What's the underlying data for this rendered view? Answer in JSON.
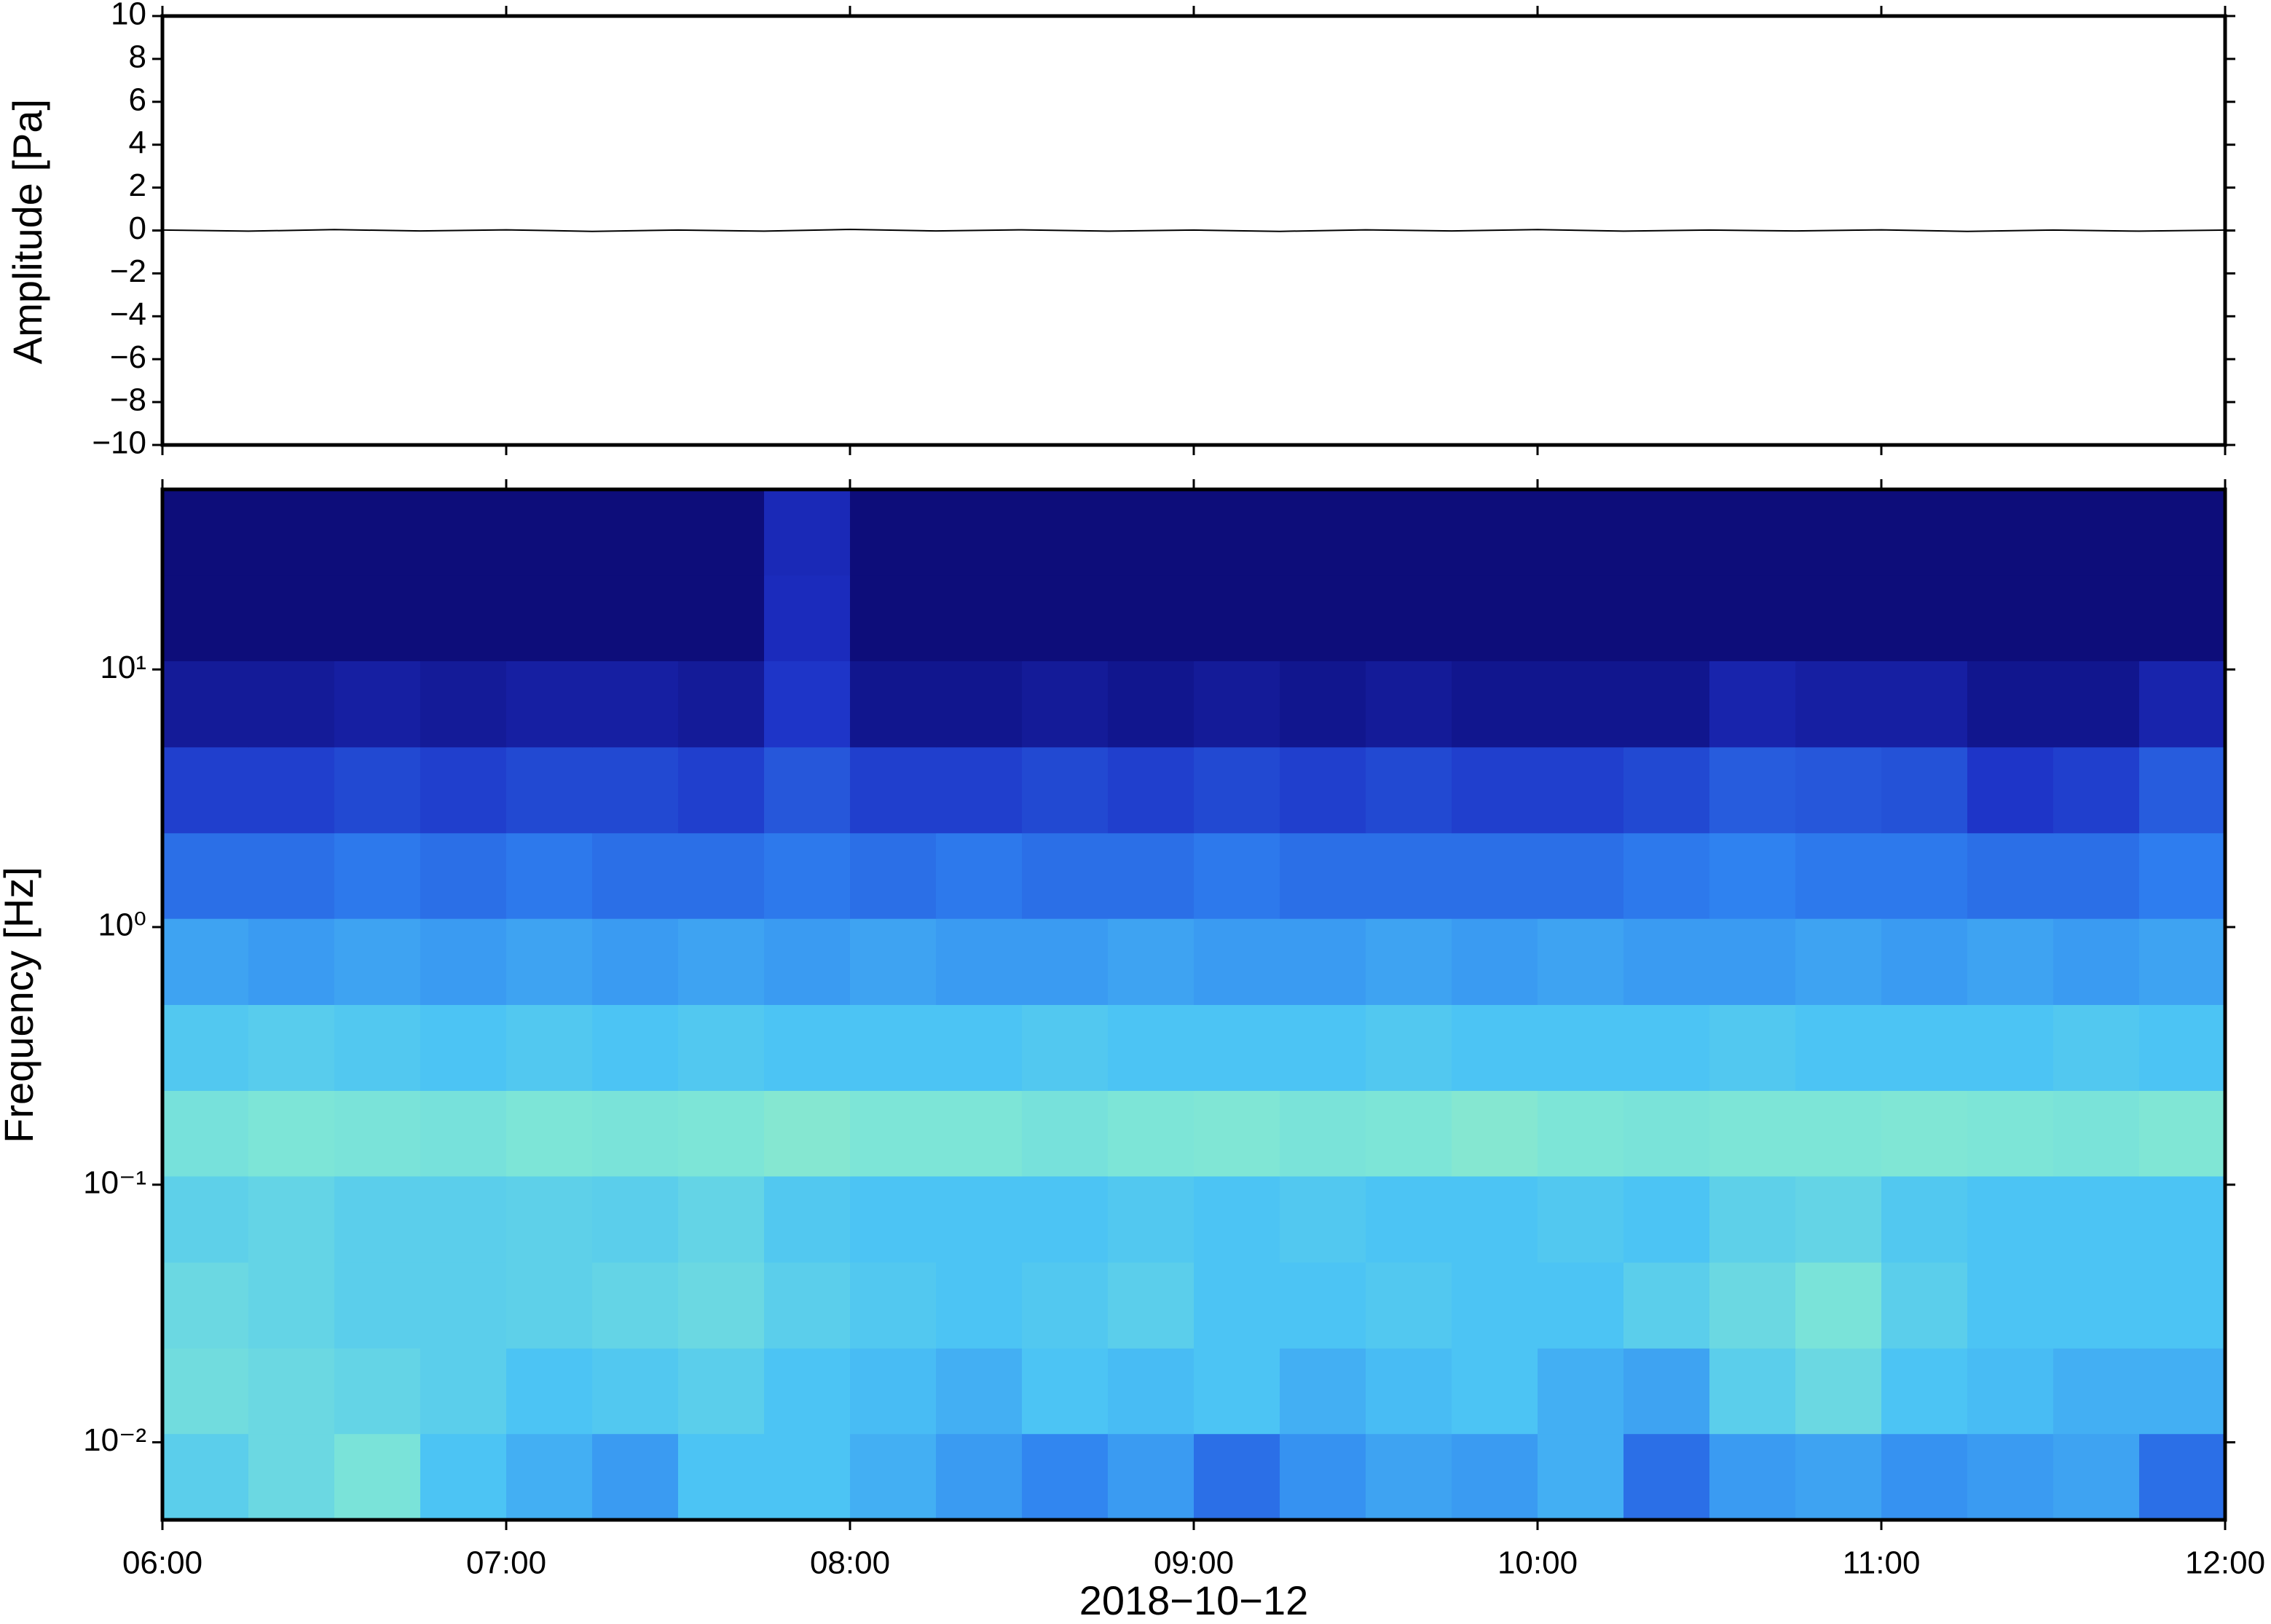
{
  "chart_data": [
    {
      "type": "line",
      "ylabel": "Amplitude [Pa]",
      "xlim": [
        "06:00",
        "12:00"
      ],
      "ylim": [
        -10,
        10
      ],
      "yticks": [
        {
          "value": -10,
          "label": "−10"
        },
        {
          "value": -8,
          "label": "−8"
        },
        {
          "value": -6,
          "label": "−6"
        },
        {
          "value": -4,
          "label": "−4"
        },
        {
          "value": -2,
          "label": "−2"
        },
        0,
        2,
        4,
        6,
        8,
        10
      ],
      "color": "#000000",
      "x": [
        "06:00",
        "06:15",
        "06:30",
        "06:45",
        "07:00",
        "07:15",
        "07:30",
        "07:45",
        "08:00",
        "08:15",
        "08:30",
        "08:45",
        "09:00",
        "09:15",
        "09:30",
        "09:45",
        "10:00",
        "10:15",
        "10:30",
        "10:45",
        "11:00",
        "11:15",
        "11:30",
        "11:45",
        "12:00"
      ],
      "values": [
        0.02,
        -0.03,
        0.04,
        -0.02,
        0.03,
        -0.04,
        0.02,
        -0.03,
        0.05,
        -0.02,
        0.03,
        -0.03,
        0.02,
        -0.04,
        0.03,
        -0.02,
        0.04,
        -0.03,
        0.02,
        -0.02,
        0.03,
        -0.04,
        0.02,
        -0.03,
        0.02
      ]
    },
    {
      "type": "heatmap",
      "ylabel": "Frequency [Hz]",
      "xlabel": "2018−10−12",
      "xlim": [
        "06:00",
        "12:00"
      ],
      "xticks": [
        "06:00",
        "07:00",
        "08:00",
        "09:00",
        "10:00",
        "11:00",
        "12:00"
      ],
      "ylim": [
        0.005,
        50
      ],
      "log_y": true,
      "yticks": [
        {
          "value": 0.01,
          "label": "10⁻²"
        },
        {
          "value": 0.1,
          "label": "10⁻¹"
        },
        {
          "value": 1,
          "label": "10⁰"
        },
        {
          "value": 10,
          "label": "10¹"
        }
      ],
      "colormap": [
        "#0b0870",
        "#1d2fc4",
        "#2e7ff0",
        "#4cc4f4",
        "#7fe6d6",
        "#c9f29a",
        "#f4ee88"
      ],
      "x_edges": [
        "06:00",
        "06:15",
        "06:30",
        "06:45",
        "07:00",
        "07:15",
        "07:30",
        "07:45",
        "08:00",
        "08:15",
        "08:30",
        "08:45",
        "09:00",
        "09:15",
        "09:30",
        "09:45",
        "10:00",
        "10:15",
        "10:30",
        "10:45",
        "11:00",
        "11:15",
        "11:30",
        "11:45",
        "12:00"
      ],
      "y_edges": [
        0.005,
        0.0108,
        0.0232,
        0.05,
        0.108,
        0.232,
        0.5,
        1.08,
        2.32,
        5,
        10.8,
        23.2,
        50
      ],
      "z": [
        [
          0.55,
          0.6,
          0.65,
          0.5,
          0.45,
          0.4,
          0.5,
          0.5,
          0.45,
          0.4,
          0.35,
          0.4,
          0.3,
          0.38,
          0.42,
          0.4,
          0.45,
          0.3,
          0.4,
          0.42,
          0.38,
          0.4,
          0.42,
          0.3
        ],
        [
          0.62,
          0.6,
          0.58,
          0.55,
          0.5,
          0.52,
          0.55,
          0.5,
          0.48,
          0.45,
          0.5,
          0.48,
          0.5,
          0.45,
          0.48,
          0.5,
          0.45,
          0.42,
          0.55,
          0.6,
          0.5,
          0.48,
          0.45,
          0.45
        ],
        [
          0.6,
          0.58,
          0.55,
          0.55,
          0.56,
          0.58,
          0.6,
          0.55,
          0.52,
          0.5,
          0.52,
          0.55,
          0.5,
          0.5,
          0.52,
          0.5,
          0.5,
          0.55,
          0.6,
          0.65,
          0.55,
          0.5,
          0.5,
          0.5
        ],
        [
          0.56,
          0.58,
          0.55,
          0.55,
          0.56,
          0.55,
          0.58,
          0.52,
          0.5,
          0.5,
          0.5,
          0.52,
          0.5,
          0.52,
          0.5,
          0.5,
          0.52,
          0.5,
          0.56,
          0.58,
          0.52,
          0.5,
          0.5,
          0.5
        ],
        [
          0.64,
          0.66,
          0.65,
          0.64,
          0.66,
          0.65,
          0.66,
          0.68,
          0.66,
          0.66,
          0.64,
          0.66,
          0.67,
          0.65,
          0.66,
          0.68,
          0.66,
          0.65,
          0.66,
          0.66,
          0.67,
          0.66,
          0.65,
          0.67
        ],
        [
          0.52,
          0.54,
          0.52,
          0.5,
          0.52,
          0.5,
          0.52,
          0.5,
          0.5,
          0.5,
          0.52,
          0.5,
          0.5,
          0.5,
          0.52,
          0.5,
          0.5,
          0.5,
          0.52,
          0.5,
          0.5,
          0.5,
          0.52,
          0.5
        ],
        [
          0.42,
          0.4,
          0.42,
          0.4,
          0.42,
          0.4,
          0.42,
          0.4,
          0.42,
          0.4,
          0.4,
          0.42,
          0.4,
          0.4,
          0.42,
          0.4,
          0.42,
          0.4,
          0.4,
          0.42,
          0.4,
          0.42,
          0.4,
          0.42
        ],
        [
          0.3,
          0.3,
          0.32,
          0.3,
          0.32,
          0.3,
          0.3,
          0.32,
          0.3,
          0.32,
          0.3,
          0.3,
          0.32,
          0.3,
          0.3,
          0.3,
          0.3,
          0.32,
          0.34,
          0.32,
          0.32,
          0.3,
          0.3,
          0.33
        ],
        [
          0.2,
          0.2,
          0.22,
          0.2,
          0.22,
          0.22,
          0.2,
          0.25,
          0.2,
          0.2,
          0.22,
          0.2,
          0.22,
          0.2,
          0.22,
          0.2,
          0.2,
          0.22,
          0.26,
          0.25,
          0.24,
          0.18,
          0.2,
          0.26
        ],
        [
          0.08,
          0.08,
          0.1,
          0.08,
          0.1,
          0.1,
          0.08,
          0.18,
          0.06,
          0.06,
          0.08,
          0.06,
          0.08,
          0.06,
          0.08,
          0.06,
          0.06,
          0.06,
          0.12,
          0.1,
          0.1,
          0.06,
          0.06,
          0.12
        ],
        [
          0.02,
          0.02,
          0.02,
          0.02,
          0.02,
          0.02,
          0.02,
          0.15,
          0.02,
          0.02,
          0.02,
          0.02,
          0.02,
          0.02,
          0.02,
          0.02,
          0.02,
          0.02,
          0.02,
          0.02,
          0.02,
          0.02,
          0.02,
          0.02
        ],
        [
          0.02,
          0.02,
          0.02,
          0.02,
          0.02,
          0.02,
          0.02,
          0.14,
          0.02,
          0.02,
          0.02,
          0.02,
          0.02,
          0.02,
          0.02,
          0.02,
          0.02,
          0.02,
          0.02,
          0.02,
          0.02,
          0.02,
          0.02,
          0.02
        ]
      ]
    }
  ]
}
